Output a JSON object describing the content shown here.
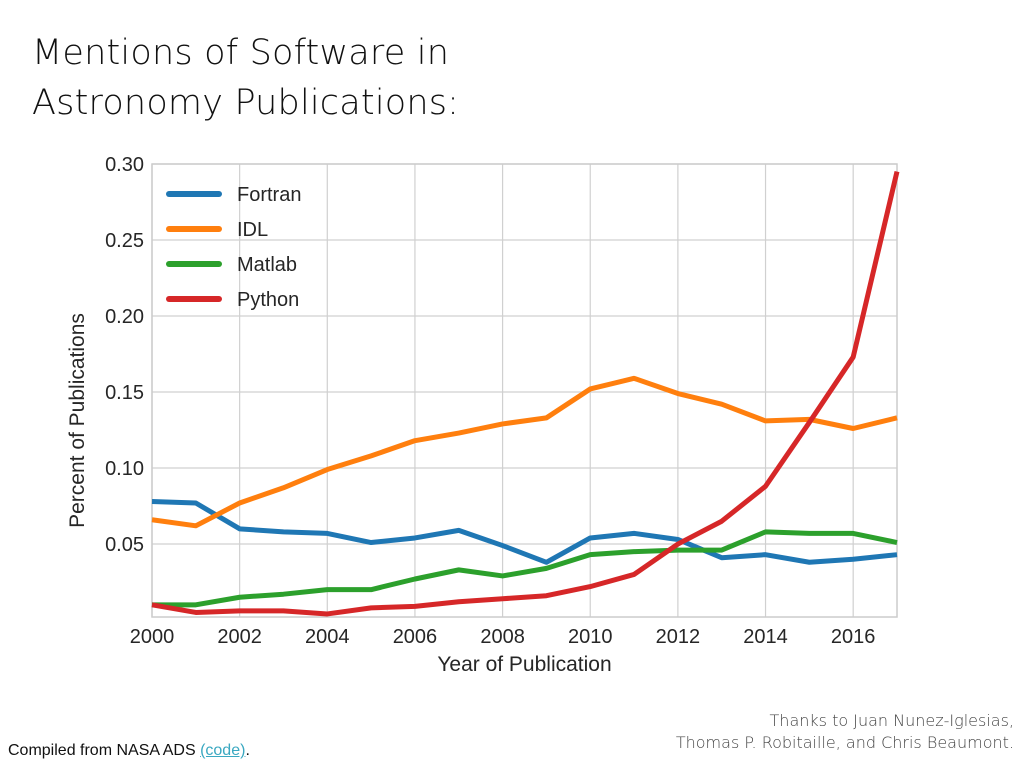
{
  "slide": {
    "title_line1": "Mentions of Software in",
    "title_line2": "Astronomy Publications:",
    "footer_left_text": "Compiled from NASA ADS ",
    "footer_left_link": "(code)",
    "footer_left_end": ".",
    "footer_right_line1": "Thanks to Juan Nunez-Iglesias,",
    "footer_right_line2": "Thomas P. Robitaille, and Chris Beaumont."
  },
  "chart_data": {
    "type": "line",
    "title": "",
    "xlabel": "Year of Publication",
    "ylabel": "Percent of Publications",
    "xlim": [
      2000,
      2017
    ],
    "ylim": [
      0.002,
      0.3
    ],
    "xticks": [
      2000,
      2002,
      2004,
      2006,
      2008,
      2010,
      2012,
      2014,
      2016
    ],
    "xtick_labels": [
      "2000",
      "2002",
      "2004",
      "2006",
      "2008",
      "2010",
      "2012",
      "2014",
      "2016"
    ],
    "yticks": [
      0.05,
      0.1,
      0.15,
      0.2,
      0.25,
      0.3
    ],
    "ytick_labels": [
      "0.05",
      "0.10",
      "0.15",
      "0.20",
      "0.25",
      "0.30"
    ],
    "grid": true,
    "legend_position": "top-left",
    "x": [
      2000,
      2001,
      2002,
      2003,
      2004,
      2005,
      2006,
      2007,
      2008,
      2009,
      2010,
      2011,
      2012,
      2013,
      2014,
      2015,
      2016,
      2017
    ],
    "series": [
      {
        "name": "Fortran",
        "color": "#1f77b4",
        "values": [
          0.078,
          0.077,
          0.06,
          0.058,
          0.057,
          0.051,
          0.054,
          0.059,
          0.049,
          0.038,
          0.054,
          0.057,
          0.053,
          0.041,
          0.043,
          0.038,
          0.04,
          0.043
        ]
      },
      {
        "name": "IDL",
        "color": "#ff7f0e",
        "values": [
          0.066,
          0.062,
          0.077,
          0.087,
          0.099,
          0.108,
          0.118,
          0.123,
          0.129,
          0.133,
          0.152,
          0.159,
          0.149,
          0.142,
          0.131,
          0.132,
          0.126,
          0.133
        ]
      },
      {
        "name": "Matlab",
        "color": "#2ca02c",
        "values": [
          0.01,
          0.01,
          0.015,
          0.017,
          0.02,
          0.02,
          0.027,
          0.033,
          0.029,
          0.034,
          0.043,
          0.045,
          0.046,
          0.046,
          0.058,
          0.057,
          0.057,
          0.051
        ]
      },
      {
        "name": "Python",
        "color": "#d62728",
        "values": [
          0.01,
          0.005,
          0.006,
          0.006,
          0.004,
          0.008,
          0.009,
          0.012,
          0.014,
          0.016,
          0.022,
          0.03,
          0.05,
          0.065,
          0.088,
          0.13,
          0.173,
          0.295
        ]
      }
    ]
  }
}
